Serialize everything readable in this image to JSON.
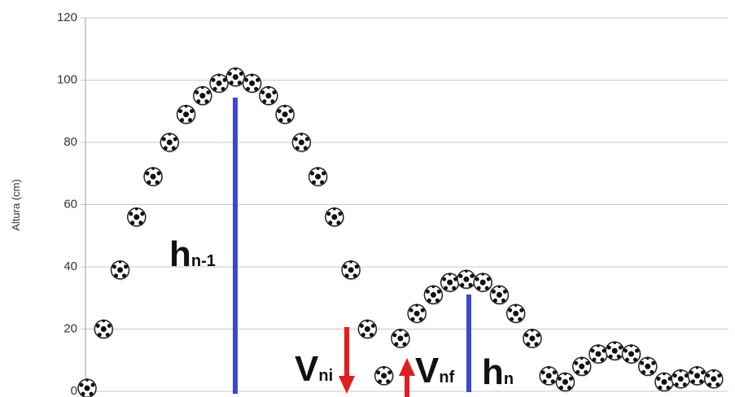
{
  "chart_data": {
    "type": "scatter",
    "y_axis_label": "Altura (cm)",
    "x": [
      0,
      1,
      2,
      3,
      4,
      5,
      6,
      7,
      8,
      9,
      10,
      11,
      12,
      13,
      14,
      15,
      16,
      17,
      18,
      19,
      20,
      21,
      22,
      23,
      24,
      25,
      26,
      27,
      28,
      29,
      30,
      31,
      32,
      33,
      34,
      35,
      36,
      37,
      38
    ],
    "values": [
      1,
      20,
      39,
      56,
      69,
      80,
      89,
      95,
      99,
      101,
      99,
      95,
      89,
      80,
      69,
      56,
      39,
      20,
      5,
      17,
      25,
      31,
      35,
      36,
      35,
      31,
      25,
      17,
      5,
      3,
      8,
      12,
      13,
      12,
      8,
      3,
      4,
      5,
      4
    ],
    "xlim": [
      -0.1,
      38.9
    ],
    "ylim": [
      0,
      120
    ],
    "yticks": [
      0,
      20,
      40,
      60,
      80,
      100,
      120
    ],
    "grid": true,
    "annotations": [
      {
        "text": "h",
        "sub": "n-1"
      },
      {
        "text": "V",
        "sub": "ni"
      },
      {
        "text": "V",
        "sub": "nf"
      },
      {
        "text": "h",
        "sub": "n"
      }
    ]
  }
}
